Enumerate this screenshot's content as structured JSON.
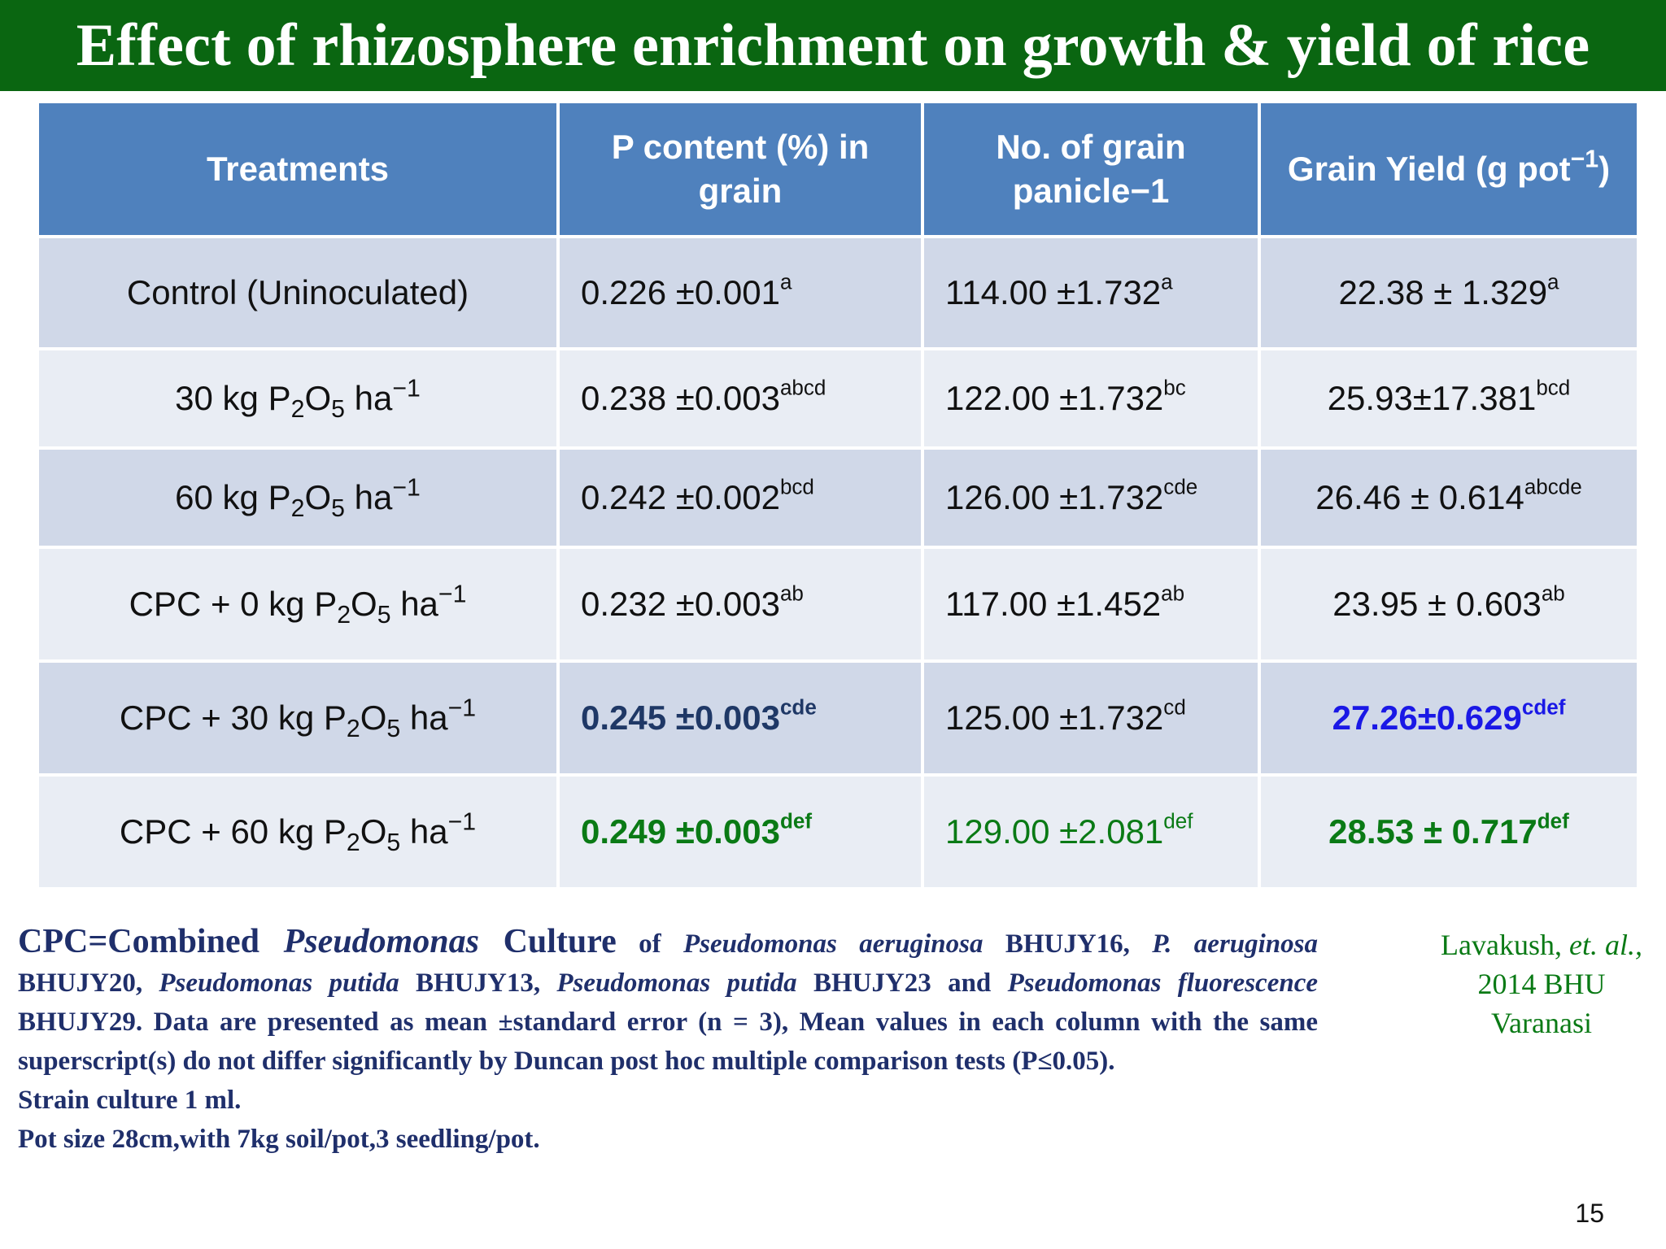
{
  "title": "Effect of rhizosphere enrichment on growth & yield of rice",
  "table": {
    "headers": {
      "treatments": "Treatments",
      "p_content": "P content (%) in grain",
      "grain_no": "No. of grain panicle−1",
      "grain_yield_pre": "Grain Yield (g pot",
      "grain_yield_sup": "−1",
      "grain_yield_post": ")"
    },
    "rows": [
      {
        "treatment": {
          "pre": "Control (Uninoculated)"
        },
        "p_value": "0.226 ±0.001",
        "p_sup": "a",
        "grain_value": "114.00 ±1.732",
        "grain_sup": "a",
        "yield_value": "22.38 ± 1.329",
        "yield_sup": "a"
      },
      {
        "treatment": {
          "pre": "30 kg P",
          "sub1": "2",
          "mid": "O",
          "sub2": "5",
          "post": " ha",
          "sup": "−1"
        },
        "p_value": "0.238 ±0.003",
        "p_sup": "abcd",
        "grain_value": "122.00 ±1.732",
        "grain_sup": "bc",
        "yield_value": "25.93±17.381",
        "yield_sup": "bcd"
      },
      {
        "treatment": {
          "pre": "60 kg P",
          "sub1": "2",
          "mid": "O",
          "sub2": "5",
          "post": " ha",
          "sup": "−1"
        },
        "p_value": "0.242 ±0.002",
        "p_sup": "bcd",
        "grain_value": "126.00 ±1.732",
        "grain_sup": "cde",
        "yield_value": "26.46 ± 0.614",
        "yield_sup": "abcde"
      },
      {
        "treatment": {
          "pre": "CPC + 0 kg P",
          "sub1": "2",
          "mid": "O",
          "sub2": "5",
          "post": " ha",
          "sup": "−1"
        },
        "p_value": "0.232 ±0.003",
        "p_sup": "ab",
        "grain_value": "117.00 ±1.452",
        "grain_sup": "ab",
        "yield_value": "23.95 ± 0.603",
        "yield_sup": "ab"
      },
      {
        "treatment": {
          "pre": "CPC + 30 kg P",
          "sub1": "2",
          "mid": "O",
          "sub2": "5",
          "post": " ha",
          "sup": "−1"
        },
        "p_value": "0.245 ±0.003",
        "p_sup": "cde",
        "grain_value": "125.00 ±1.732",
        "grain_sup": "cd",
        "yield_value": "27.26±0.629",
        "yield_sup": "cdef"
      },
      {
        "treatment": {
          "pre": "CPC + 60 kg P",
          "sub1": "2",
          "mid": "O",
          "sub2": "5",
          "post": " ha",
          "sup": "−1"
        },
        "p_value": "0.249 ±0.003",
        "p_sup": "def",
        "grain_value": "129.00 ±2.081",
        "grain_sup": "def",
        "yield_value": "28.53 ± 0.717",
        "yield_sup": "def"
      }
    ]
  },
  "colors": {
    "title_bar": "#0a6611",
    "header": "#4f81bd",
    "row_dark": "#d0d8e8",
    "row_light": "#e9edf4",
    "highlight_navy": "#1f3866",
    "highlight_blue": "#1a18e6",
    "highlight_green": "#0a7a15",
    "footnote": "#1f2f6b"
  },
  "footnote": {
    "t1": "CPC=Combined ",
    "t2": "Pseudomonas",
    "t3": " Culture",
    "t4": " of ",
    "t5": "Pseudomonas aeruginosa",
    "t6": " BHUJY16, ",
    "t7": "P. aeruginosa",
    "t8": " BHUJY20, ",
    "t9": "Pseudomonas putida",
    "t10": " BHUJY13, ",
    "t11": "Pseudomonas putida",
    "t12": " BHUJY23 and ",
    "t13": "Pseudomonas fluorescence",
    "t14": " BHUJY29. Data are presented as mean ±standard error (n = 3), Mean values in each column with the same superscript(s) do not differ significantly by Duncan post hoc multiple comparison tests (P≤0.05).",
    "line2": "Strain culture 1 ml.",
    "line3": "Pot size 28cm,with 7kg soil/pot,3 seedling/pot."
  },
  "citation": {
    "author": "Lavakush, ",
    "etal": "et. al.,",
    "line2": "2014 BHU",
    "line3": "Varanasi"
  },
  "page_number": "15"
}
